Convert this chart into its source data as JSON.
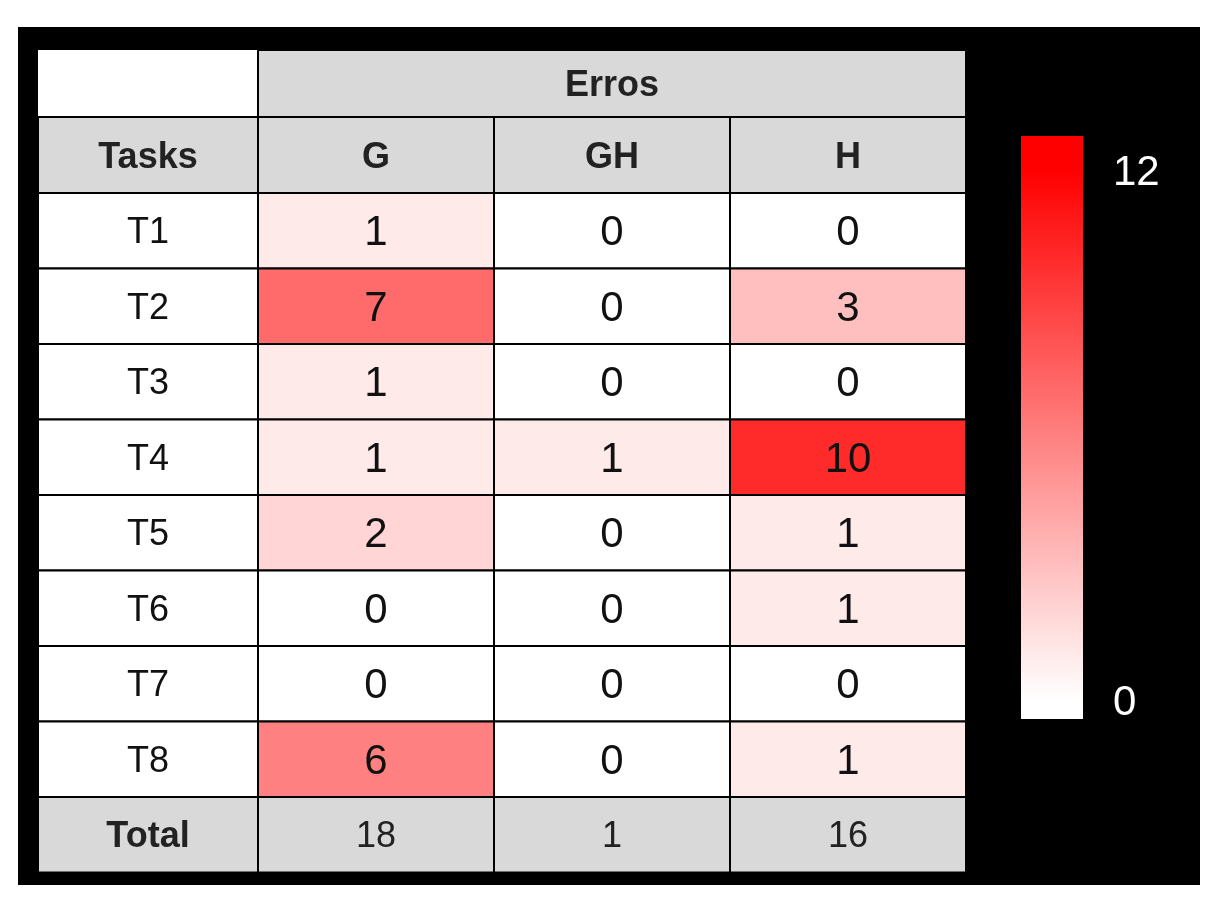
{
  "chart_data": {
    "type": "heatmap",
    "xlabel": "Erros",
    "ylabel": "Tasks",
    "categories": [
      "G",
      "GH",
      "H"
    ],
    "y_categories": [
      "T1",
      "T2",
      "T3",
      "T4",
      "T5",
      "T6",
      "T7",
      "T8"
    ],
    "cells": [
      [
        1,
        0,
        0
      ],
      [
        7,
        0,
        3
      ],
      [
        1,
        0,
        0
      ],
      [
        1,
        1,
        10
      ],
      [
        2,
        0,
        1
      ],
      [
        0,
        0,
        1
      ],
      [
        0,
        0,
        0
      ],
      [
        6,
        0,
        1
      ]
    ],
    "data_labels": true,
    "totals": [
      "18",
      "1",
      "16"
    ],
    "annotations": [
      "Total"
    ],
    "clim": [
      0,
      12
    ],
    "cticks": [
      0,
      12
    ]
  }
}
